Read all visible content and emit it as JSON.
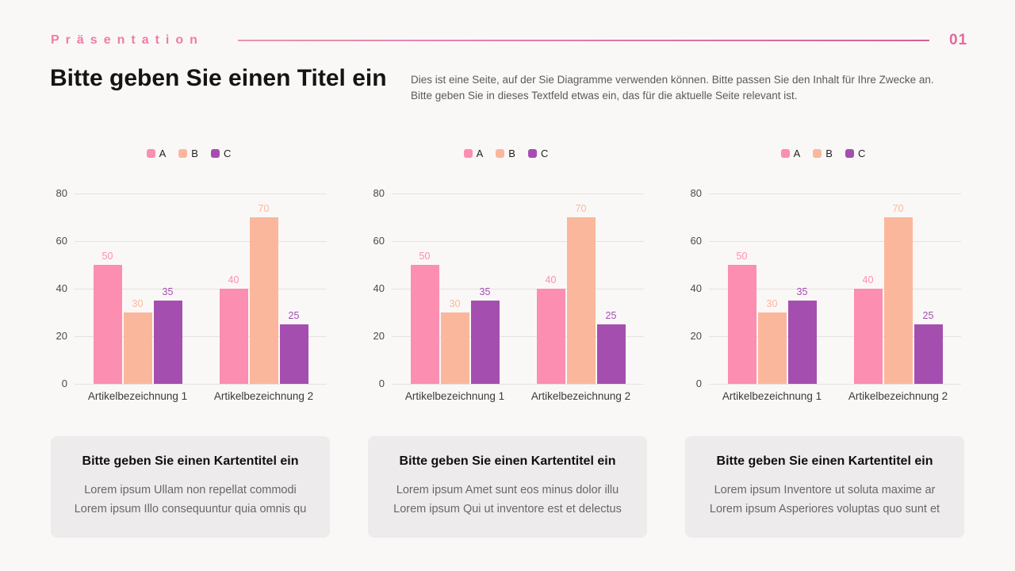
{
  "header": {
    "brand": "Präsentation",
    "page_number": "01"
  },
  "title_block": {
    "title": "Bitte geben Sie einen Titel ein",
    "subtitle_line1": "Dies ist eine Seite, auf der Sie Diagramme verwenden können. Bitte passen Sie den Inhalt für Ihre Zwecke an.",
    "subtitle_line2": "Bitte geben Sie in dieses Textfeld etwas ein, das für die aktuelle Seite relevant ist."
  },
  "colors": {
    "accent_pink": "#f07ca8",
    "series_a": "#fb8eb1",
    "series_b": "#fbb79c",
    "series_c": "#a44fb0",
    "card_background": "#edebeb",
    "page_background": "#faf8f7"
  },
  "chart_data": [
    {
      "type": "bar",
      "categories": [
        "Artikelbezeichnung 1",
        "Artikelbezeichnung 2"
      ],
      "series": [
        {
          "name": "A",
          "values": [
            50,
            40
          ],
          "color": "#fb8eb1"
        },
        {
          "name": "B",
          "values": [
            30,
            70
          ],
          "color": "#fbb79c"
        },
        {
          "name": "C",
          "values": [
            35,
            25
          ],
          "color": "#a44fb0"
        }
      ],
      "ylim": [
        0,
        80
      ],
      "yticks": [
        0,
        20,
        40,
        60,
        80
      ],
      "grid": true,
      "legend_position": "top"
    },
    {
      "type": "bar",
      "categories": [
        "Artikelbezeichnung 1",
        "Artikelbezeichnung 2"
      ],
      "series": [
        {
          "name": "A",
          "values": [
            50,
            40
          ],
          "color": "#fb8eb1"
        },
        {
          "name": "B",
          "values": [
            30,
            70
          ],
          "color": "#fbb79c"
        },
        {
          "name": "C",
          "values": [
            35,
            25
          ],
          "color": "#a44fb0"
        }
      ],
      "ylim": [
        0,
        80
      ],
      "yticks": [
        0,
        20,
        40,
        60,
        80
      ],
      "grid": true,
      "legend_position": "top"
    },
    {
      "type": "bar",
      "categories": [
        "Artikelbezeichnung 1",
        "Artikelbezeichnung 2"
      ],
      "series": [
        {
          "name": "A",
          "values": [
            50,
            40
          ],
          "color": "#fb8eb1"
        },
        {
          "name": "B",
          "values": [
            30,
            70
          ],
          "color": "#fbb79c"
        },
        {
          "name": "C",
          "values": [
            35,
            25
          ],
          "color": "#a44fb0"
        }
      ],
      "ylim": [
        0,
        80
      ],
      "yticks": [
        0,
        20,
        40,
        60,
        80
      ],
      "grid": true,
      "legend_position": "top"
    }
  ],
  "cards": [
    {
      "title": "Bitte geben Sie einen Kartentitel ein",
      "line1": "Lorem ipsum Ullam non repellat commodi",
      "line2": "Lorem ipsum Illo consequuntur quia omnis qu"
    },
    {
      "title": "Bitte geben Sie einen Kartentitel ein",
      "line1": "Lorem ipsum Amet sunt eos minus dolor illu",
      "line2": "Lorem ipsum Qui ut inventore est et delectus"
    },
    {
      "title": "Bitte geben Sie einen Kartentitel ein",
      "line1": "Lorem ipsum Inventore ut soluta maxime ar",
      "line2": "Lorem ipsum Asperiores voluptas quo sunt et"
    }
  ]
}
